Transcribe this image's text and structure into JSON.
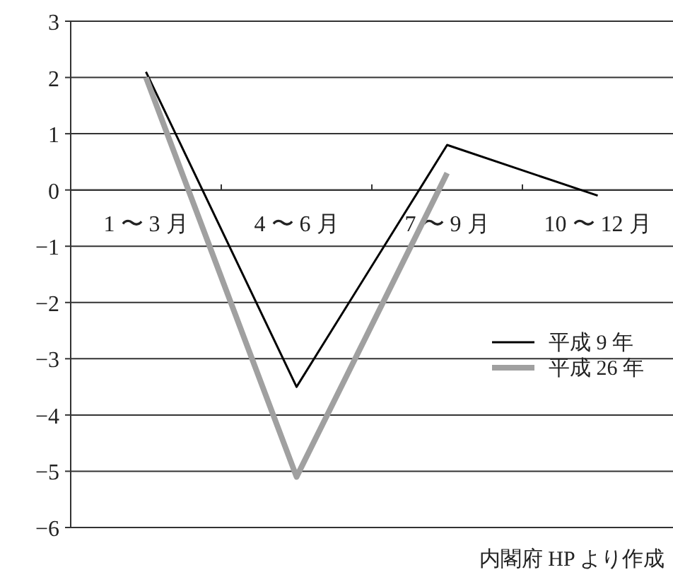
{
  "chart_data": {
    "type": "line",
    "categories": [
      "1 〜 3 月",
      "4 〜 6 月",
      "7 〜 9 月",
      "10 〜 12 月"
    ],
    "series": [
      {
        "name": "平成 9 年",
        "color": "#000000",
        "values": [
          2.1,
          -3.5,
          0.8,
          -0.1
        ]
      },
      {
        "name": "平成 26 年",
        "color": "#a0a0a0",
        "values": [
          2.0,
          -5.1,
          0.3,
          null
        ]
      }
    ],
    "ylim": [
      -6,
      3
    ],
    "yticks": [
      -6,
      -5,
      -4,
      -3,
      -2,
      -1,
      0,
      1,
      2,
      3
    ],
    "grid": "y",
    "legend": "right",
    "marker": "none",
    "line_style": "solid",
    "annotations": [
      "内閣府 HP より作成"
    ]
  }
}
